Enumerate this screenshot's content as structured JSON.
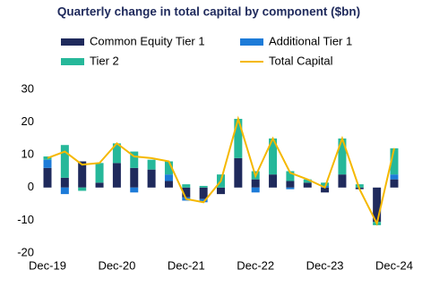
{
  "chart_data": {
    "type": "bar",
    "title": "Quarterly change in total capital by component ($bn)",
    "categories": [
      "Dec-19",
      null,
      null,
      null,
      "Dec-20",
      null,
      null,
      null,
      "Dec-21",
      null,
      null,
      null,
      "Dec-22",
      null,
      null,
      null,
      "Dec-23",
      null,
      null,
      null,
      "Dec-24"
    ],
    "series": [
      {
        "name": "Common Equity Tier 1",
        "color": "#1f2a5c",
        "values": [
          6,
          3,
          8,
          1.5,
          7.5,
          6,
          5.5,
          2,
          -3,
          -3.5,
          -2,
          9,
          2.5,
          4,
          2,
          1.5,
          -1.5,
          4,
          -0.5,
          -10.5,
          2.5
        ]
      },
      {
        "name": "Additional Tier 1",
        "color": "#1d7bd8",
        "values": [
          2.5,
          -2,
          0,
          0,
          0,
          -1.5,
          0,
          2,
          -1,
          -1,
          0,
          0,
          -1.5,
          0,
          -0.5,
          0,
          0.5,
          0,
          0,
          0,
          1.5
        ]
      },
      {
        "name": "Tier 2",
        "color": "#26b89a",
        "values": [
          1,
          10,
          -1,
          6,
          6,
          5,
          3,
          4,
          1,
          0.5,
          4,
          12,
          2.5,
          11,
          3,
          1,
          1,
          11,
          1,
          -1,
          8
        ]
      },
      {
        "name": "Total Capital",
        "color": "#f5b800",
        "type": "line",
        "values": [
          9,
          11,
          7,
          7.5,
          13.5,
          9.5,
          9,
          8,
          -3.5,
          -4.5,
          2,
          21,
          3.5,
          15,
          4.5,
          2.5,
          0,
          15,
          -0.5,
          -11,
          12
        ]
      }
    ],
    "ylim": [
      -20,
      30
    ],
    "yticks": [
      -20,
      -10,
      0,
      10,
      20,
      30
    ],
    "grid": false
  }
}
